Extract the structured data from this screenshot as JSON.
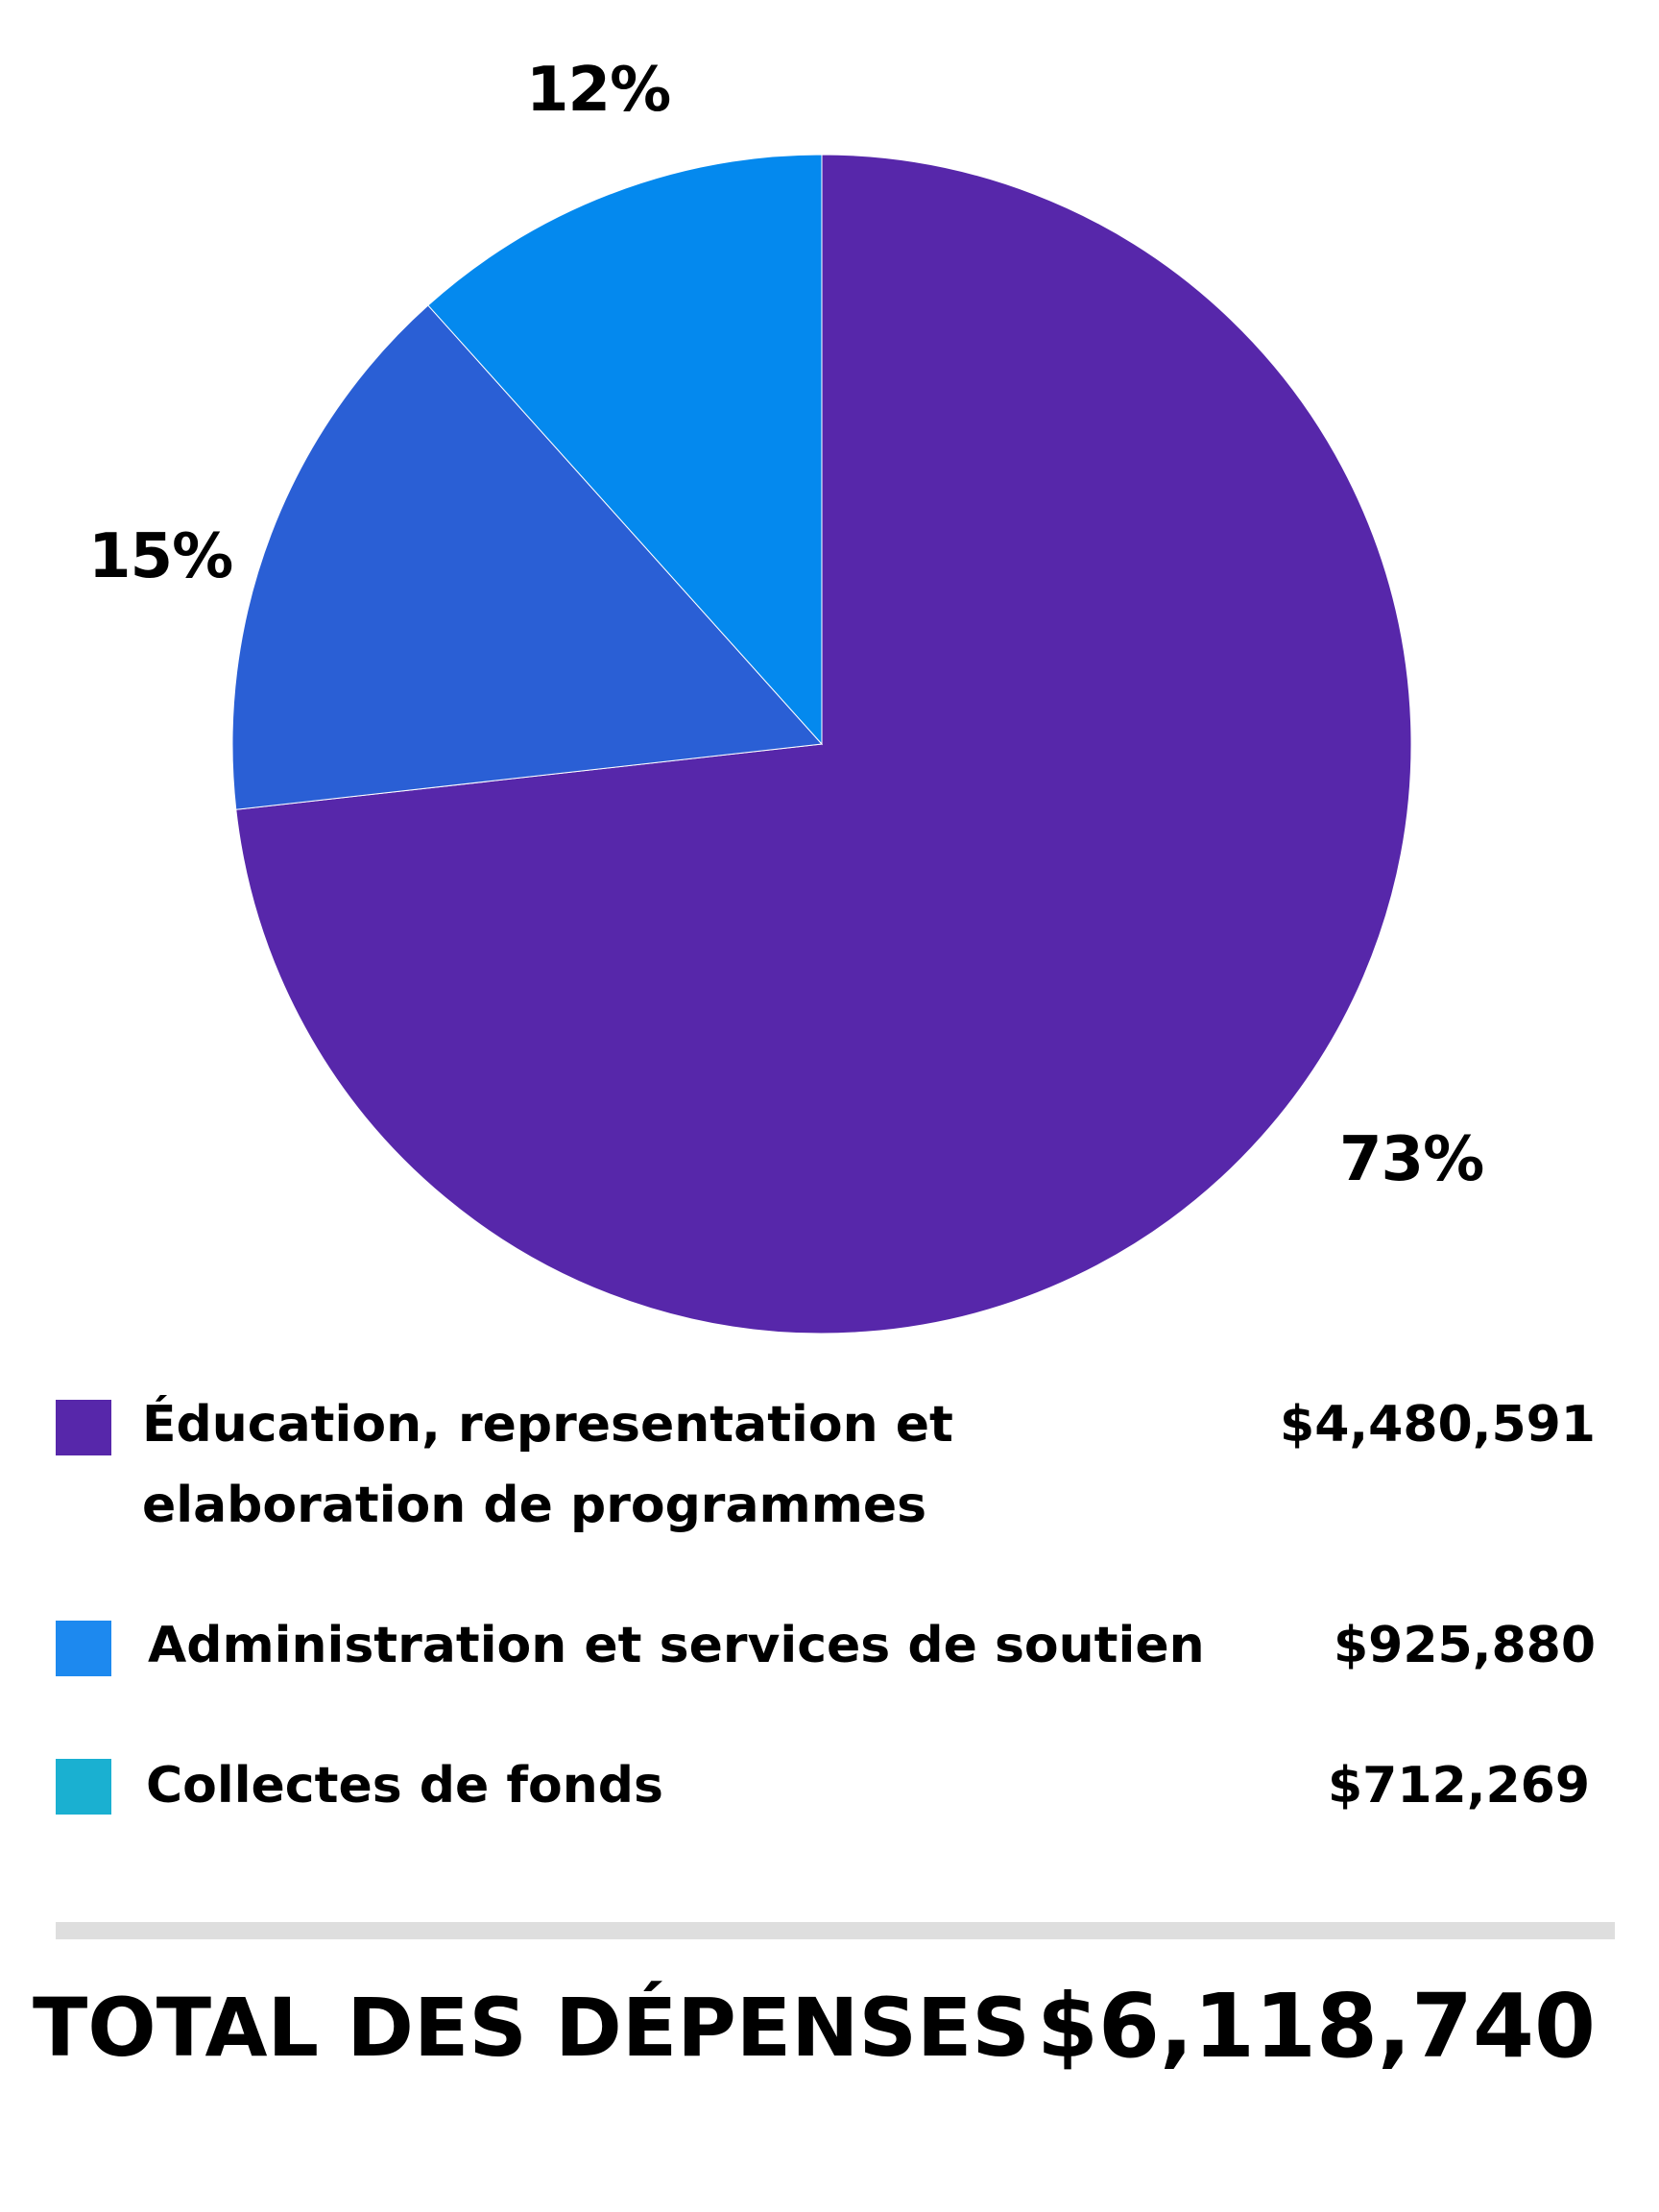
{
  "chart_data": {
    "type": "pie",
    "slices": [
      {
        "label": "Éducation, representation et elaboration de programmes",
        "value": 4480591,
        "value_label": "$4,480,591",
        "percent": 73,
        "percent_label": "73%",
        "color": "#5727aa"
      },
      {
        "label": "Administration et services de soutien",
        "value": 925880,
        "value_label": "$925,880",
        "percent": 15,
        "percent_label": "15%",
        "color": "#2a5fd5"
      },
      {
        "label": "Collectes de fonds",
        "value": 712269,
        "value_label": "$712,269",
        "percent": 12,
        "percent_label": "12%",
        "color": "#0489ee"
      }
    ],
    "legend_swatches": [
      "#5727aa",
      "#1d89ef",
      "#1ab0d1"
    ],
    "legend_placement": "bottom",
    "start_angle_deg": 0,
    "direction": "clockwise"
  },
  "total": {
    "label": "TOTAL DES DÉPENSES",
    "value": "$6,118,740"
  }
}
